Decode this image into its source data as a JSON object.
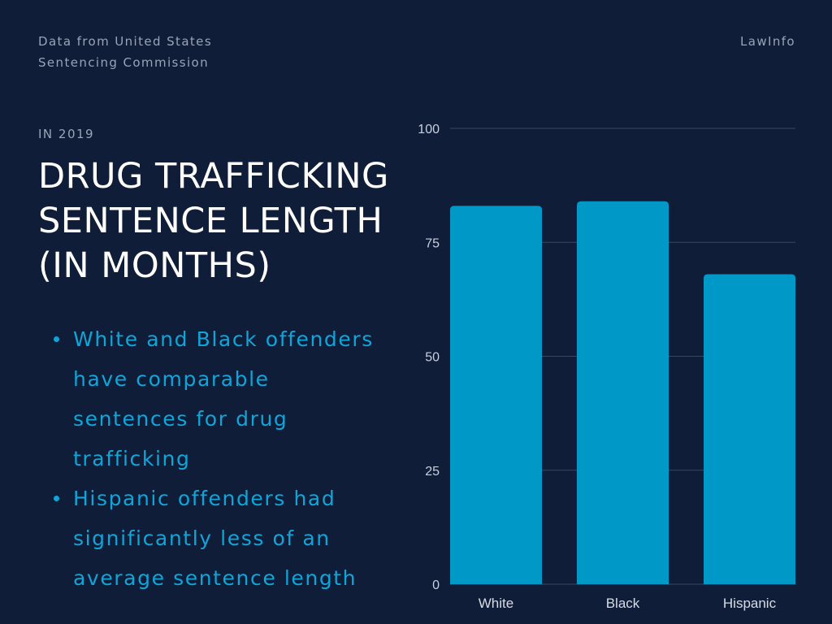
{
  "header": {
    "source_line1": "Data from United States",
    "source_line2": "Sentencing Commission",
    "brand": "LawInfo"
  },
  "kicker": "IN 2019",
  "title_lines": [
    "DRUG TRAFFICKING",
    "SENTENCE LENGTH",
    "(IN MONTHS)"
  ],
  "bullets": [
    {
      "lines": [
        "White and Black offenders",
        "have comparable",
        "sentences for drug",
        "trafficking"
      ]
    },
    {
      "lines": [
        "Hispanic offenders had",
        "significantly less of an",
        "average sentence length"
      ]
    }
  ],
  "colors": {
    "background": "#0f1d38",
    "bar": "#0098c6",
    "bullet_text": "#0ea5d9",
    "gridline": "#3a4663"
  },
  "chart_data": {
    "type": "bar",
    "categories": [
      "White",
      "Black",
      "Hispanic"
    ],
    "values": [
      83,
      84,
      68
    ],
    "title": "",
    "xlabel": "",
    "ylabel": "",
    "ylim": [
      0,
      100
    ],
    "yticks": [
      0,
      25,
      50,
      75,
      100
    ],
    "grid": true
  }
}
